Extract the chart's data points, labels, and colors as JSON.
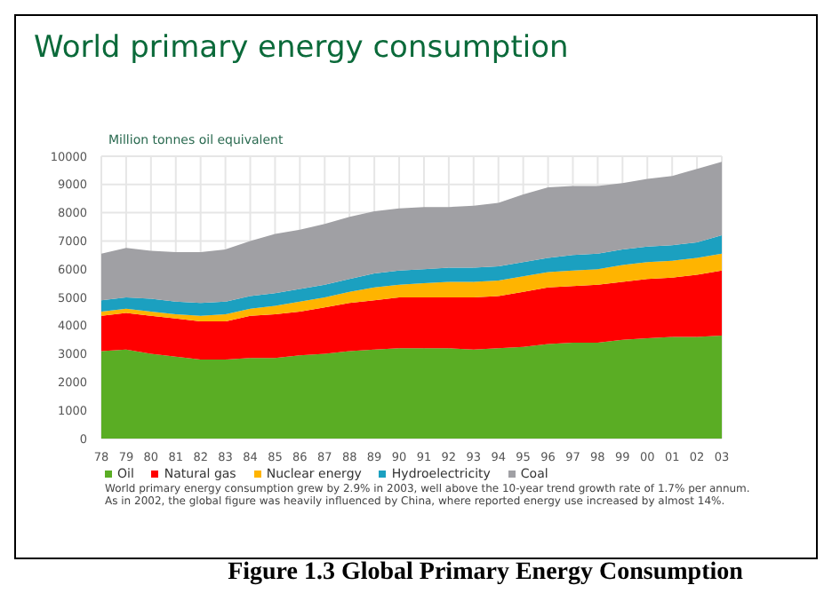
{
  "chart_data": {
    "type": "area",
    "title": "World primary energy consumption",
    "ylabel": "Million tonnes oil equivalent",
    "stacked": true,
    "grid": true,
    "legend": "bottom left",
    "categories": [
      "78",
      "79",
      "80",
      "81",
      "82",
      "83",
      "84",
      "85",
      "86",
      "87",
      "88",
      "89",
      "90",
      "91",
      "92",
      "93",
      "94",
      "95",
      "96",
      "97",
      "98",
      "99",
      "00",
      "01",
      "02",
      "03"
    ],
    "ylim": [
      0,
      10000
    ],
    "yticks": [
      0,
      1000,
      2000,
      3000,
      4000,
      5000,
      6000,
      7000,
      8000,
      9000,
      10000
    ],
    "series": [
      {
        "name": "Oil",
        "color": "#5aad24",
        "values": [
          3100,
          3150,
          3000,
          2900,
          2800,
          2800,
          2850,
          2850,
          2950,
          3000,
          3100,
          3150,
          3200,
          3200,
          3200,
          3150,
          3200,
          3250,
          3350,
          3400,
          3400,
          3500,
          3550,
          3600,
          3600,
          3650
        ]
      },
      {
        "name": "Natural gas",
        "color": "#ff0000",
        "values": [
          1250,
          1300,
          1350,
          1350,
          1350,
          1350,
          1500,
          1550,
          1550,
          1650,
          1700,
          1750,
          1800,
          1800,
          1800,
          1850,
          1850,
          1950,
          2000,
          2000,
          2050,
          2050,
          2100,
          2100,
          2200,
          2300
        ]
      },
      {
        "name": "Nuclear energy",
        "color": "#ffb400",
        "values": [
          150,
          150,
          150,
          150,
          200,
          250,
          250,
          300,
          350,
          350,
          400,
          450,
          450,
          500,
          550,
          550,
          550,
          550,
          550,
          550,
          550,
          600,
          600,
          600,
          600,
          600
        ]
      },
      {
        "name": "Hydroelectricity",
        "color": "#1ba0c0",
        "values": [
          400,
          400,
          450,
          450,
          450,
          450,
          450,
          450,
          450,
          450,
          450,
          500,
          500,
          500,
          500,
          500,
          500,
          500,
          500,
          550,
          550,
          550,
          550,
          550,
          550,
          650
        ]
      },
      {
        "name": "Coal",
        "color": "#a0a0a4",
        "values": [
          1650,
          1750,
          1700,
          1750,
          1800,
          1850,
          1950,
          2100,
          2100,
          2150,
          2200,
          2200,
          2200,
          2200,
          2150,
          2200,
          2250,
          2400,
          2500,
          2450,
          2400,
          2350,
          2400,
          2450,
          2600,
          2600
        ]
      }
    ],
    "annotations": [
      "World primary energy consumption grew by 2.9% in 2003, well above the 10-year trend growth rate of 1.7% per annum.\nAs in 2002, the global figure was heavily influenced by China, where reported energy use increased by almost 14%.",
      "Figure 1.3 Global Primary Energy Consumption"
    ]
  }
}
